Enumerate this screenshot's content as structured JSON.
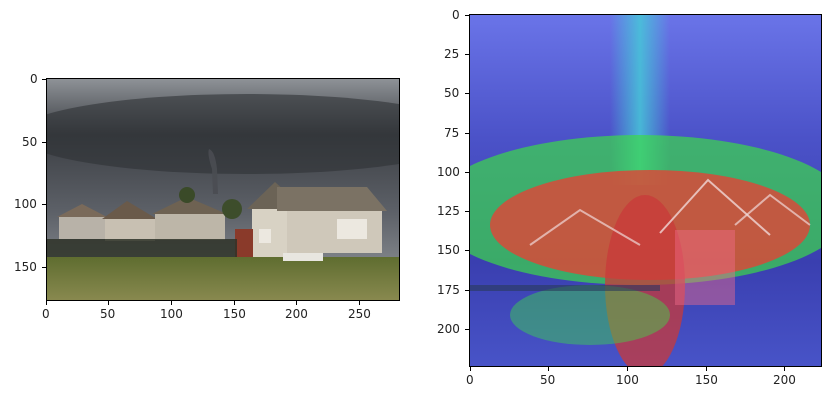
{
  "left_panel": {
    "image_description_icon": "photo-tornado-houses",
    "x_ticks": [
      "0",
      "50",
      "100",
      "150",
      "200",
      "250"
    ],
    "y_ticks": [
      "0",
      "50",
      "100",
      "150"
    ]
  },
  "right_panel": {
    "image_description_icon": "gradcam-heatmap-overlay",
    "x_ticks": [
      "0",
      "50",
      "100",
      "150",
      "200"
    ],
    "y_ticks": [
      "0",
      "25",
      "50",
      "75",
      "100",
      "125",
      "150",
      "175",
      "200"
    ]
  },
  "colors": {
    "sky_dark": "#3a3d42",
    "sky_light": "#8a8e93",
    "grass": "#6b7a3a",
    "house_siding": "#d8d2c4",
    "heat_blue": "#4b5ad8",
    "heat_green": "#39d94a",
    "heat_red": "#d93a3a"
  }
}
